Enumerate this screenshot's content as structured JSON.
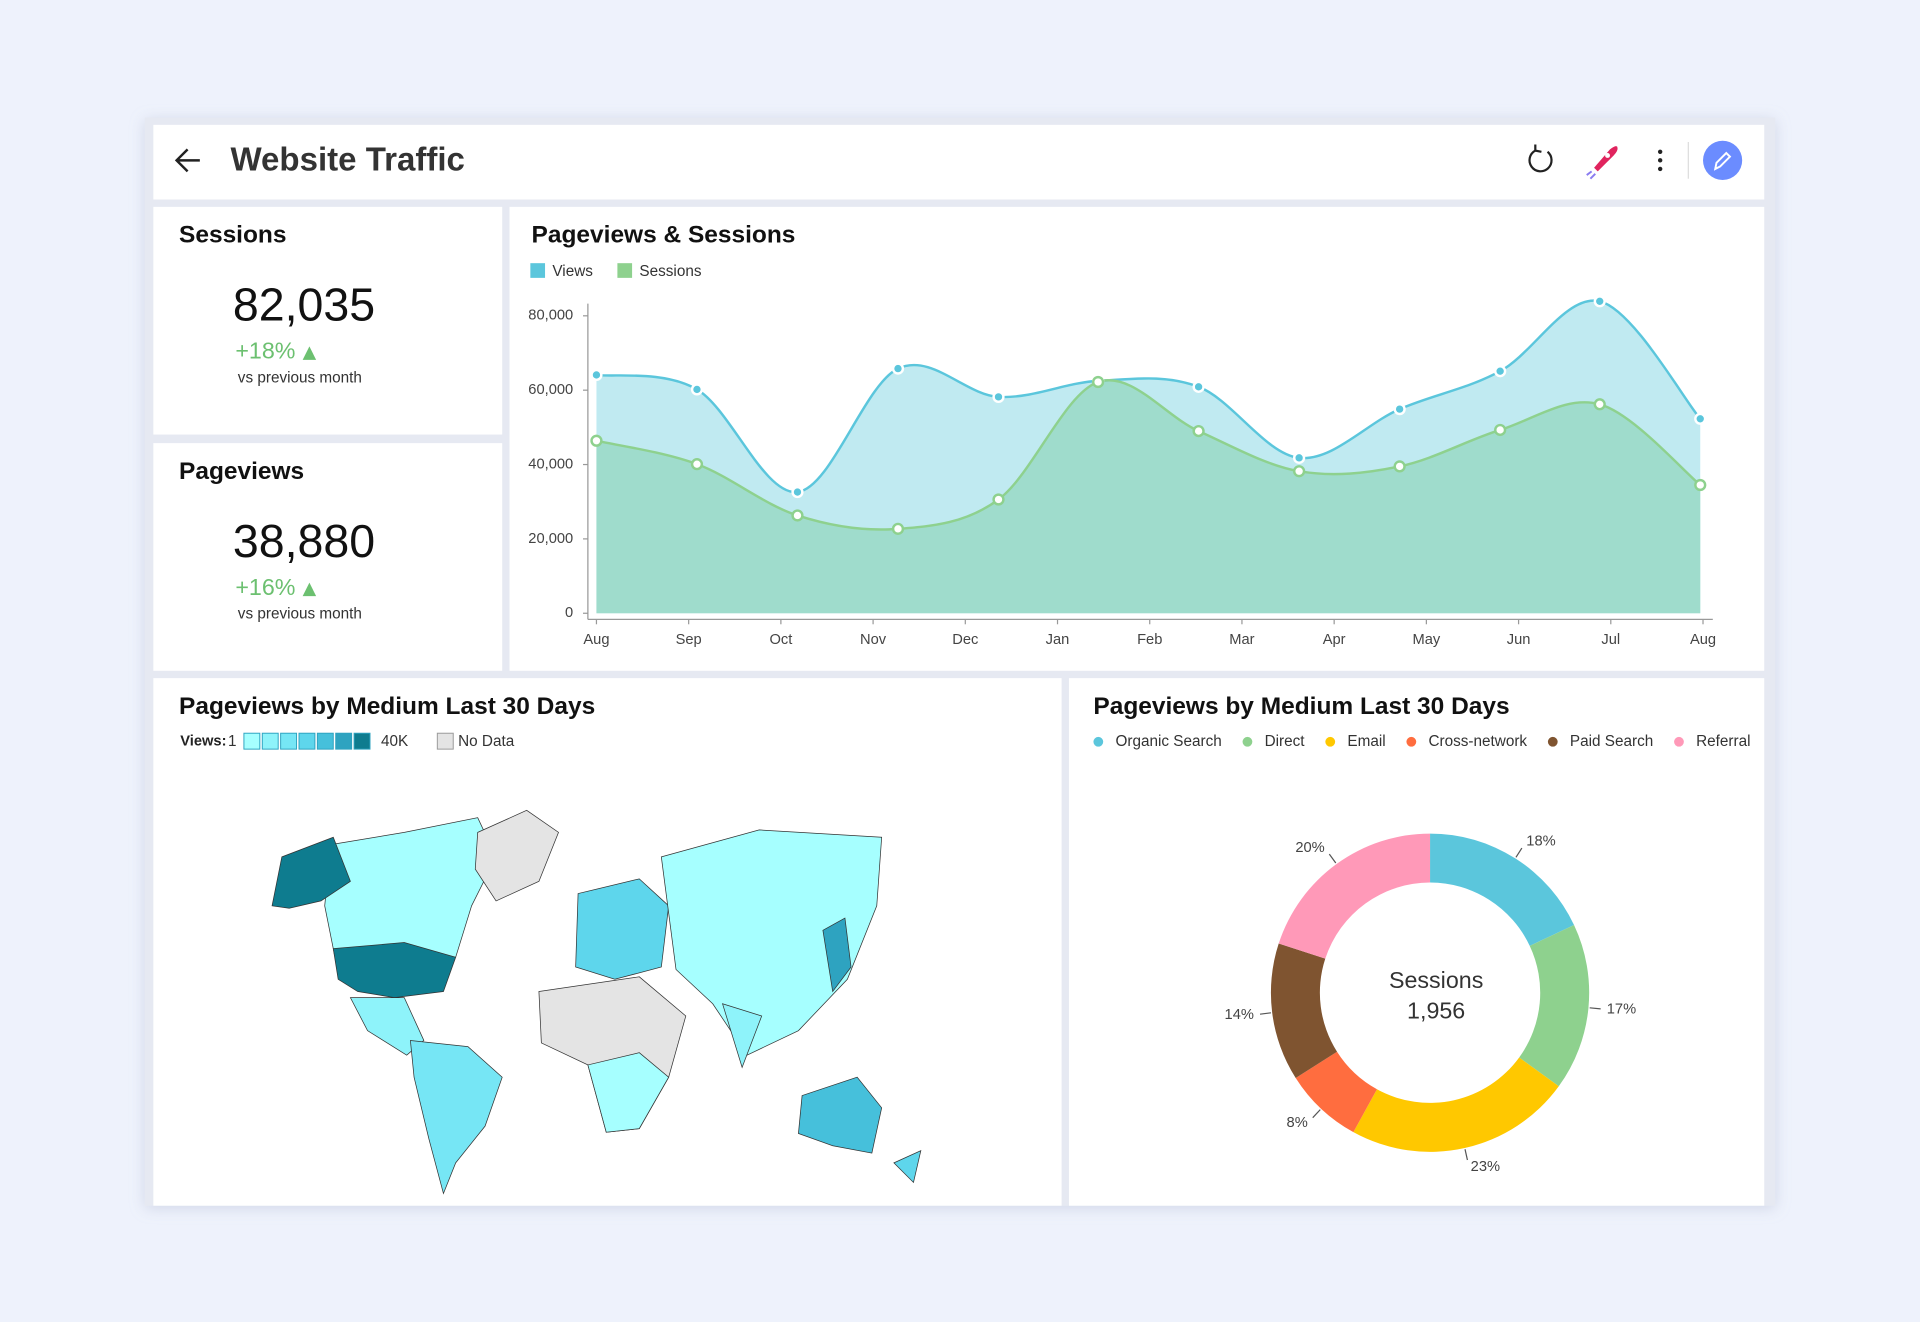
{
  "header": {
    "title": "Website Traffic"
  },
  "kpis": [
    {
      "title": "Sessions",
      "value": "82,035",
      "change": "+18%",
      "note": "vs previous month"
    },
    {
      "title": "Pageviews",
      "value": "38,880",
      "change": "+16%",
      "note": "vs previous month"
    }
  ],
  "chart_data": [
    {
      "type": "line",
      "area": true,
      "title": "Pageviews & Sessions",
      "x": [
        0,
        1.09,
        2.18,
        3.27,
        4.36,
        5.44,
        6.53,
        7.62,
        8.71,
        9.8,
        10.88,
        11.97
      ],
      "xlim": [
        0,
        12
      ],
      "xticks": [
        {
          "value": 0,
          "label": "Aug"
        },
        {
          "value": 1,
          "label": "Sep"
        },
        {
          "value": 2,
          "label": "Oct"
        },
        {
          "value": 3,
          "label": "Nov"
        },
        {
          "value": 4,
          "label": "Dec"
        },
        {
          "value": 5,
          "label": "Jan"
        },
        {
          "value": 6,
          "label": "Feb"
        },
        {
          "value": 7,
          "label": "Mar"
        },
        {
          "value": 8,
          "label": "Apr"
        },
        {
          "value": 9,
          "label": "May"
        },
        {
          "value": 10,
          "label": "Jun"
        },
        {
          "value": 11,
          "label": "Jul"
        },
        {
          "value": 12,
          "label": "Aug"
        }
      ],
      "ylim": [
        0,
        80000
      ],
      "yticks": [
        0,
        {
          "value": 20000,
          "label": "20,000"
        },
        {
          "value": 40000,
          "label": "40,000"
        },
        {
          "value": 60000,
          "label": "60,000"
        },
        {
          "value": 80000,
          "label": "80,000"
        }
      ],
      "series": [
        {
          "name": "Views",
          "color": "#5bc6dc",
          "values": [
            64100,
            60200,
            32600,
            65800,
            58200,
            62500,
            60900,
            41800,
            54900,
            65100,
            83900,
            52300
          ]
        },
        {
          "name": "Sessions",
          "color": "#8ed18e",
          "values": [
            46400,
            40100,
            26300,
            22700,
            30600,
            62200,
            49000,
            38200,
            39500,
            49300,
            56200,
            34500
          ]
        }
      ]
    },
    {
      "type": "map",
      "title": "Pageviews by Medium Last 30 Days",
      "legend": {
        "label": "Views:",
        "min": "1",
        "max": "40K",
        "no_data": "No Data"
      },
      "scale_colors": [
        "#a6ffff",
        "#8ef3fa",
        "#76e6f5",
        "#5ed6ec",
        "#46c0db",
        "#2ea3c0",
        "#0e7c8f"
      ],
      "no_data_color": "#e4e4e4"
    },
    {
      "type": "donut",
      "title": "Pageviews by Medium Last 30 Days",
      "categories": [
        "Organic Search",
        "Direct",
        "Email",
        "Cross-network",
        "Paid Search",
        "Referral"
      ],
      "values": [
        18,
        17,
        23,
        8,
        14,
        20
      ],
      "value_labels": [
        "18%",
        "17%",
        "23%",
        "8%",
        "14%",
        "20%"
      ],
      "colors": [
        "#5bc6dc",
        "#8ed18e",
        "#ffc800",
        "#ff6d3f",
        "#7f5430",
        "#ff99b8"
      ],
      "center_label": "Sessions",
      "center_text": "1,956"
    }
  ]
}
